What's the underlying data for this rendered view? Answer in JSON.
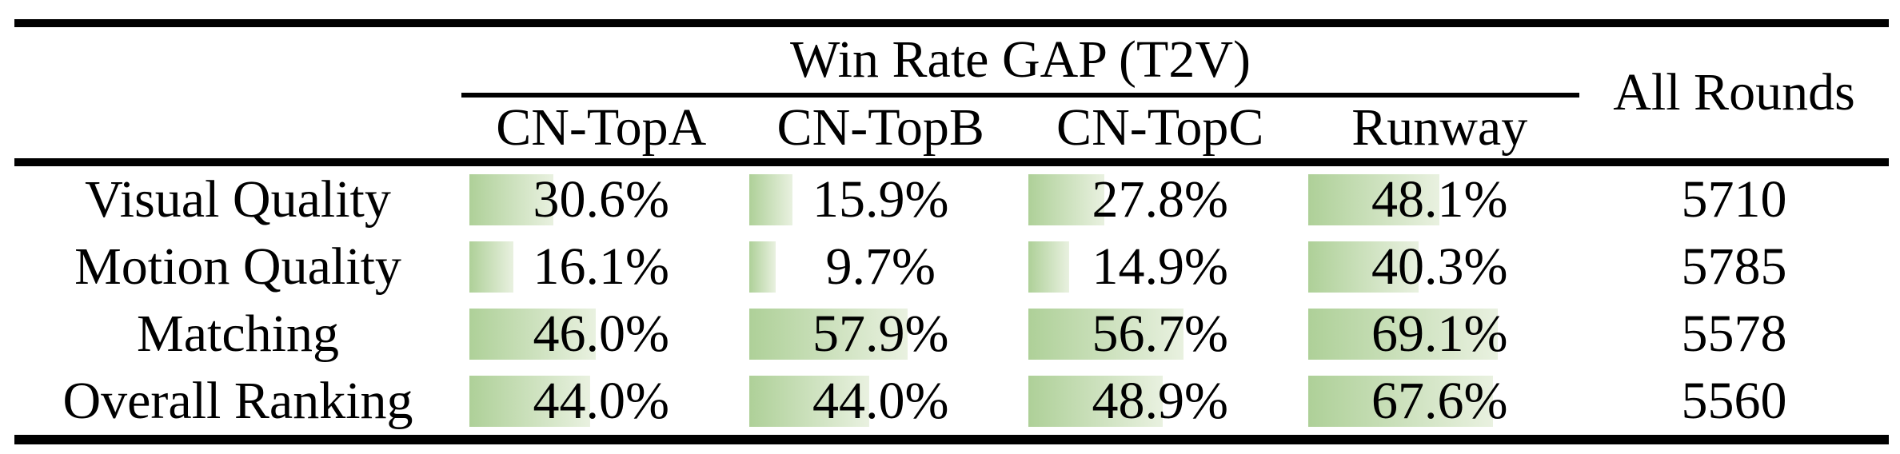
{
  "table": {
    "group_header": "Win Rate GAP (T2V)",
    "all_rounds_header": "All Rounds",
    "model_columns": [
      "CN-TopA",
      "CN-TopB",
      "CN-TopC",
      "Runway"
    ],
    "rows": [
      {
        "label": "Visual Quality",
        "cells": [
          {
            "text": "30.6%",
            "value": 30.6
          },
          {
            "text": "15.9%",
            "value": 15.9
          },
          {
            "text": "27.8%",
            "value": 27.8
          },
          {
            "text": "48.1%",
            "value": 48.1
          }
        ],
        "all_rounds": "5710"
      },
      {
        "label": "Motion Quality",
        "cells": [
          {
            "text": "16.1%",
            "value": 16.1
          },
          {
            "text": "9.7%",
            "value": 9.7
          },
          {
            "text": "14.9%",
            "value": 14.9
          },
          {
            "text": "40.3%",
            "value": 40.3
          }
        ],
        "all_rounds": "5785"
      },
      {
        "label": "Matching",
        "cells": [
          {
            "text": "46.0%",
            "value": 46.0
          },
          {
            "text": "57.9%",
            "value": 57.9
          },
          {
            "text": "56.7%",
            "value": 56.7
          },
          {
            "text": "69.1%",
            "value": 69.1
          }
        ],
        "all_rounds": "5578"
      },
      {
        "label": "Overall Ranking",
        "cells": [
          {
            "text": "44.0%",
            "value": 44.0
          },
          {
            "text": "44.0%",
            "value": 44.0
          },
          {
            "text": "48.9%",
            "value": 48.9
          },
          {
            "text": "67.6%",
            "value": 67.6
          }
        ],
        "all_rounds": "5560"
      }
    ]
  },
  "colors": {
    "bar_gradient_start": "#aed098",
    "bar_gradient_end": "#e9f1e0",
    "rule_color": "#000000",
    "text_color": "#000000",
    "background": "#ffffff"
  }
}
